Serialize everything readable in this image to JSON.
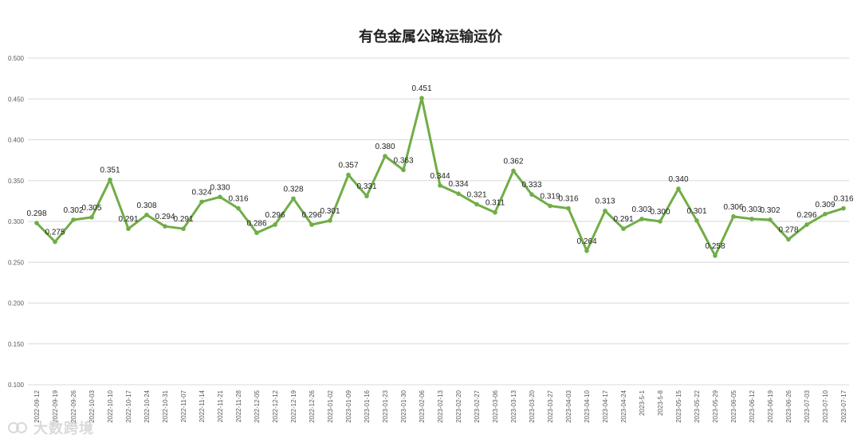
{
  "chart_data": {
    "type": "line",
    "title": "有色金属公路运输运价",
    "xlabel": "",
    "ylabel": "",
    "ylim": [
      0.1,
      0.5
    ],
    "yticks": [
      "0.100",
      "0.150",
      "0.200",
      "0.250",
      "0.300",
      "0.350",
      "0.400",
      "0.450",
      "0.500"
    ],
    "grid": true,
    "legend": "none",
    "line_color": "#70ad47",
    "categories": [
      "2022-09-12",
      "2022-09-19",
      "2022-09-26",
      "2022-10-03",
      "2022-10-10",
      "2022-10-17",
      "2022-10-24",
      "2022-10-31",
      "2022-11-07",
      "2022-11-14",
      "2022-11-21",
      "2022-11-28",
      "2022-12-05",
      "2022-12-12",
      "2022-12-19",
      "2022-12-26",
      "2023-01-02",
      "2023-01-09",
      "2023-01-16",
      "2023-01-23",
      "2023-01-30",
      "2023-02-06",
      "2023-02-13",
      "2023-02-20",
      "2023-02-27",
      "2023-03-06",
      "2023-03-13",
      "2023-03-20",
      "2023-03-27",
      "2023-04-03",
      "2023-04-10",
      "2023-04-17",
      "2023-04-24",
      "2023-5-1",
      "2023-5-8",
      "2023-05-15",
      "2023-05-22",
      "2023-05-29",
      "2023-06-05",
      "2023-06-12",
      "2023-06-19",
      "2023-06-26",
      "2023-07-03",
      "2023-07-10",
      "2023-07-17"
    ],
    "values": [
      0.298,
      0.275,
      0.302,
      0.305,
      0.351,
      0.291,
      0.308,
      0.294,
      0.291,
      0.324,
      0.33,
      0.316,
      0.286,
      0.296,
      0.328,
      0.296,
      0.301,
      0.357,
      0.331,
      0.38,
      0.363,
      0.451,
      0.344,
      0.334,
      0.321,
      0.311,
      0.362,
      0.333,
      0.319,
      0.316,
      0.264,
      0.313,
      0.291,
      0.303,
      0.3,
      0.34,
      0.301,
      0.258,
      0.306,
      0.303,
      0.302,
      0.278,
      0.296,
      0.309,
      0.316
    ],
    "data_labels": [
      "0.298",
      "0.275",
      "0.302",
      "0.305",
      "0.351",
      "0.291",
      "0.308",
      "0.294",
      "0.291",
      "0.324",
      "0.330",
      "0.316",
      "0.286",
      "0.296",
      "0.328",
      "0.296",
      "0.301",
      "0.357",
      "0.331",
      "0.380",
      "0.363",
      "0.451",
      "0.344",
      "0.334",
      "0.321",
      "0.311",
      "0.362",
      "0.333",
      "0.319",
      "0.316",
      "0.264",
      "0.313",
      "0.291",
      "0.303",
      "0.300",
      "0.340",
      "0.301",
      "0.258",
      "0.306",
      "0.303",
      "0.302",
      "0.278",
      "0.296",
      "0.309",
      "0.316"
    ]
  },
  "watermark": {
    "text": "大数跨境",
    "icon": "logo-icon"
  }
}
